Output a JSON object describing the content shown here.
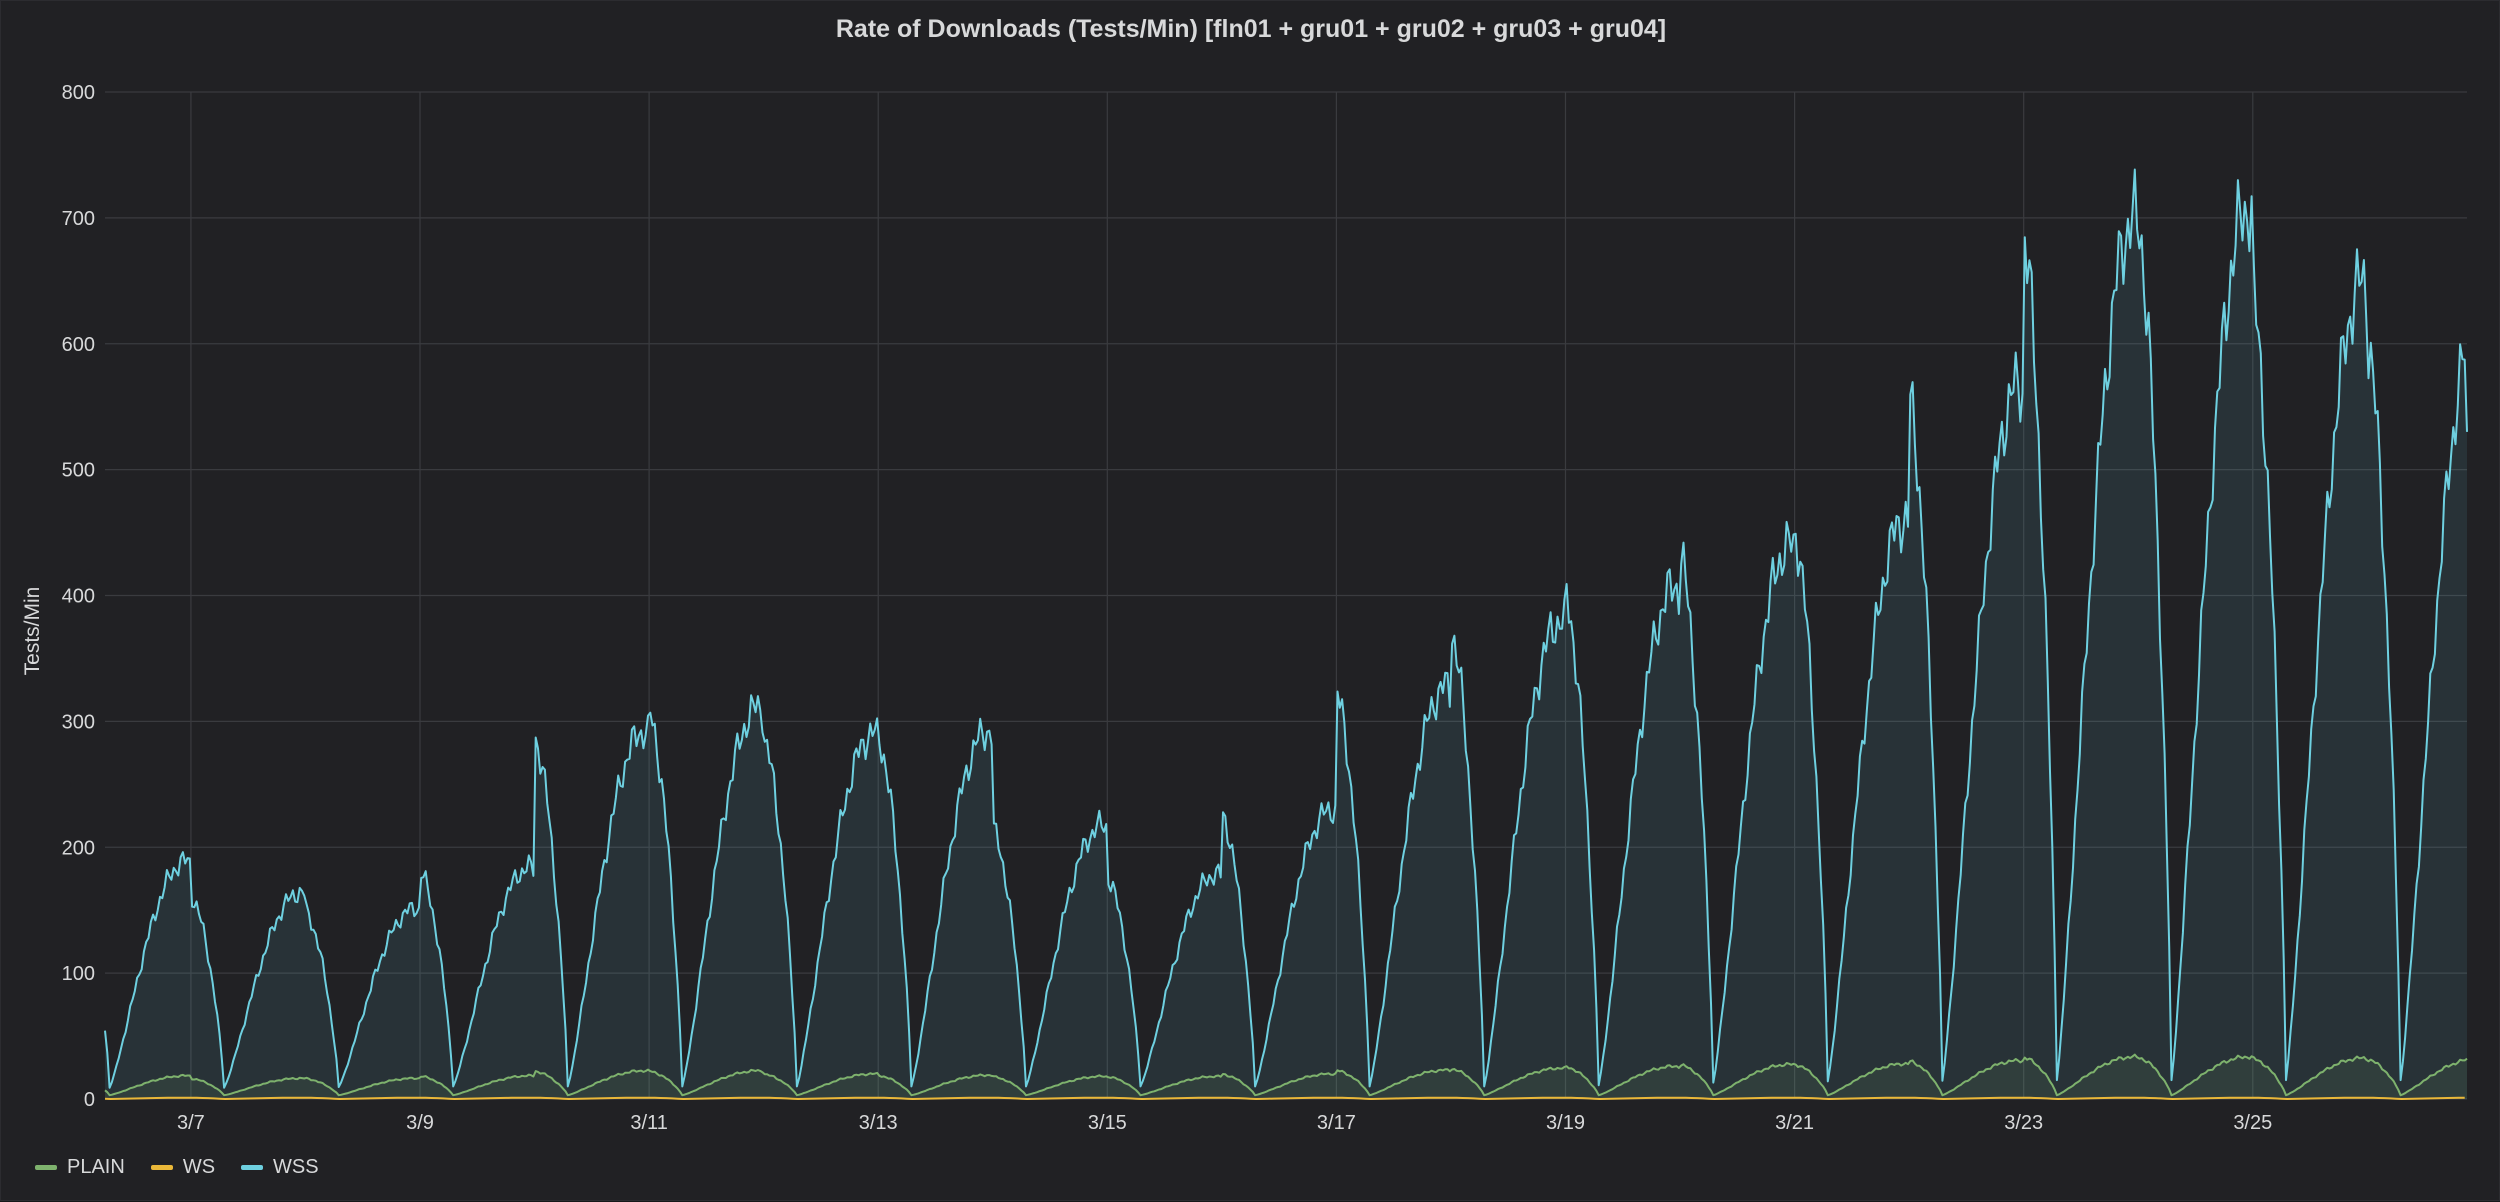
{
  "panel": {
    "title": "Rate of Downloads (Tests/Min) [fln01 + gru01 + gru02 + gru03 + gru04]"
  },
  "chart_data": {
    "type": "line",
    "title": "Rate of Downloads (Tests/Min) [fln01 + gru01 + gru02 + gru03 + gru04]",
    "xlabel": "",
    "ylabel": "Tests/Min",
    "ylim": [
      0,
      800
    ],
    "yticks": [
      0,
      100,
      200,
      300,
      400,
      500,
      600,
      700,
      800
    ],
    "xlim": [
      "3/6 06:00",
      "3/26 21:00"
    ],
    "xticks": [
      "3/7",
      "3/9",
      "3/11",
      "3/13",
      "3/15",
      "3/17",
      "3/19",
      "3/21",
      "3/23",
      "3/25"
    ],
    "grid": true,
    "legend": "bottom-left",
    "series_note": "values are daily min/max rates read off the chart, in Tests/Min",
    "series": [
      {
        "name": "PLAIN",
        "color": "#7eb26d",
        "daily": [
          {
            "day": "3/6",
            "max": 20,
            "min": 3
          },
          {
            "day": "3/7",
            "max": 17,
            "min": 3
          },
          {
            "day": "3/8",
            "max": 16,
            "min": 3
          },
          {
            "day": "3/9",
            "max": 17,
            "min": 3
          },
          {
            "day": "3/10",
            "max": 20,
            "min": 3
          },
          {
            "day": "3/11",
            "max": 25,
            "min": 3
          },
          {
            "day": "3/12",
            "max": 20,
            "min": 3
          },
          {
            "day": "3/13",
            "max": 20,
            "min": 3
          },
          {
            "day": "3/14",
            "max": 18,
            "min": 3
          },
          {
            "day": "3/15",
            "max": 18,
            "min": 3
          },
          {
            "day": "3/16",
            "max": 18,
            "min": 3
          },
          {
            "day": "3/17",
            "max": 22,
            "min": 3
          },
          {
            "day": "3/18",
            "max": 24,
            "min": 3
          },
          {
            "day": "3/19",
            "max": 25,
            "min": 3
          },
          {
            "day": "3/20",
            "max": 27,
            "min": 3
          },
          {
            "day": "3/21",
            "max": 28,
            "min": 3
          },
          {
            "day": "3/22",
            "max": 28,
            "min": 3
          },
          {
            "day": "3/23",
            "max": 33,
            "min": 3
          },
          {
            "day": "3/24",
            "max": 34,
            "min": 3
          },
          {
            "day": "3/25",
            "max": 33,
            "min": 3
          },
          {
            "day": "3/26",
            "max": 32,
            "min": 3
          }
        ]
      },
      {
        "name": "WS",
        "color": "#eab839",
        "daily": [
          {
            "day": "3/6",
            "max": 1,
            "min": 0
          },
          {
            "day": "3/26",
            "max": 1,
            "min": 0
          }
        ]
      },
      {
        "name": "WSS",
        "color": "#6ed0e0",
        "daily": [
          {
            "day": "3/6",
            "max": 200,
            "min": 9
          },
          {
            "day": "3/7",
            "max": 178,
            "min": 9
          },
          {
            "day": "3/8",
            "max": 150,
            "min": 9
          },
          {
            "day": "3/9",
            "max": 153,
            "min": 10
          },
          {
            "day": "3/10",
            "max": 215,
            "min": 10
          },
          {
            "day": "3/11",
            "max": 370,
            "min": 10
          },
          {
            "day": "3/12",
            "max": 253,
            "min": 10
          },
          {
            "day": "3/13",
            "max": 328,
            "min": 10
          },
          {
            "day": "3/14",
            "max": 257,
            "min": 10
          },
          {
            "day": "3/15",
            "max": 178,
            "min": 10
          },
          {
            "day": "3/16",
            "max": 180,
            "min": 10
          },
          {
            "day": "3/17",
            "max": 280,
            "min": 10
          },
          {
            "day": "3/18",
            "max": 375,
            "min": 10
          },
          {
            "day": "3/19",
            "max": 385,
            "min": 10
          },
          {
            "day": "3/20",
            "max": 430,
            "min": 12
          },
          {
            "day": "3/21",
            "max": 450,
            "min": 14
          },
          {
            "day": "3/22",
            "max": 472,
            "min": 14
          },
          {
            "day": "3/23",
            "max": 662,
            "min": 15
          },
          {
            "day": "3/24",
            "max": 735,
            "min": 15
          },
          {
            "day": "3/25",
            "max": 682,
            "min": 15
          },
          {
            "day": "3/26",
            "max": 615,
            "min": 15
          }
        ],
        "last_value": 530
      }
    ]
  },
  "legend": [
    {
      "label": "PLAIN",
      "color": "#7eb26d"
    },
    {
      "label": "WS",
      "color": "#eab839"
    },
    {
      "label": "WSS",
      "color": "#6ed0e0"
    }
  ]
}
